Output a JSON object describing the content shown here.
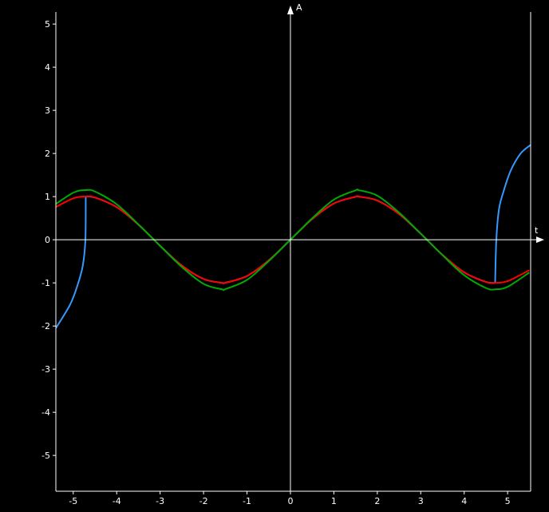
{
  "chart_data": {
    "type": "line",
    "xlabel": "t",
    "ylabel": "A",
    "xlim": [
      -5.4,
      5.53
    ],
    "ylim": [
      -5.83,
      5.28
    ],
    "x_ticks": [
      -5,
      -4,
      -3,
      -2,
      -1,
      0,
      1,
      2,
      3,
      4,
      5
    ],
    "y_ticks": [
      -5,
      -4,
      -3,
      -2,
      -1,
      0,
      1,
      2,
      3,
      4,
      5
    ],
    "grid": false,
    "background": "#000000",
    "axis_color": "#ffffff",
    "series": [
      {
        "color": "#3399ff",
        "segments": [
          {
            "x": [
              -5.4,
              -5.07,
              -4.9,
              -4.78,
              -4.72,
              -4.712
            ],
            "y": [
              -2.05,
              -1.5,
              -1.05,
              -0.6,
              0,
              1.0
            ]
          },
          {
            "x": [
              -4.712,
              -4.5,
              -4,
              -3.5,
              -3,
              -2.5,
              -2,
              -1.571,
              -1.5,
              -1,
              -0.5,
              0,
              0.5,
              1,
              1.5,
              1.571,
              2,
              2.5,
              3,
              3.5,
              4,
              4.5,
              4.712
            ],
            "y": [
              1.0,
              0.978,
              0.757,
              0.351,
              -0.141,
              -0.598,
              -0.909,
              -1.0,
              -0.997,
              -0.841,
              -0.479,
              0,
              0.479,
              0.841,
              0.997,
              1.0,
              0.909,
              0.598,
              0.141,
              -0.351,
              -0.757,
              -0.978,
              -1.0
            ]
          },
          {
            "x": [
              4.712,
              4.74,
              4.8,
              4.9,
              5.07,
              5.3,
              5.53
            ],
            "y": [
              -1.0,
              0,
              0.7,
              1.1,
              1.6,
              2.0,
              2.2
            ]
          }
        ]
      },
      {
        "color": "#ff0000",
        "x": [
          -5.5,
          -5,
          -4.712,
          -4.5,
          -4,
          -3.5,
          -3,
          -2.5,
          -2,
          -1.571,
          -1.5,
          -1,
          -0.5,
          0,
          0.5,
          1,
          1.5,
          1.571,
          2,
          2.5,
          3,
          3.5,
          4,
          4.5,
          4.712,
          5,
          5.5
        ],
        "y": [
          0.706,
          0.959,
          1.0,
          0.978,
          0.757,
          0.351,
          -0.141,
          -0.598,
          -0.909,
          -1.0,
          -0.997,
          -0.841,
          -0.479,
          0,
          0.479,
          0.841,
          0.997,
          1.0,
          0.909,
          0.598,
          0.141,
          -0.351,
          -0.757,
          -0.978,
          -1.0,
          -0.959,
          -0.706
        ]
      },
      {
        "color": "#00aa00",
        "x": [
          -5.5,
          -5,
          -4.712,
          -4.5,
          -4,
          -3.5,
          -3,
          -2.5,
          -2,
          -1.571,
          -1.5,
          -1,
          -0.5,
          0,
          0.5,
          1,
          1.5,
          1.571,
          2,
          2.5,
          3,
          3.5,
          4,
          4.5,
          4.712,
          5,
          5.5
        ],
        "y": [
          0.759,
          1.091,
          1.15,
          1.118,
          0.822,
          0.357,
          -0.141,
          -0.63,
          -1.022,
          -1.15,
          -1.146,
          -0.93,
          -0.495,
          0,
          0.495,
          0.93,
          1.146,
          1.15,
          1.022,
          0.63,
          0.141,
          -0.357,
          -0.822,
          -1.118,
          -1.15,
          -1.091,
          -0.759
        ]
      }
    ]
  }
}
